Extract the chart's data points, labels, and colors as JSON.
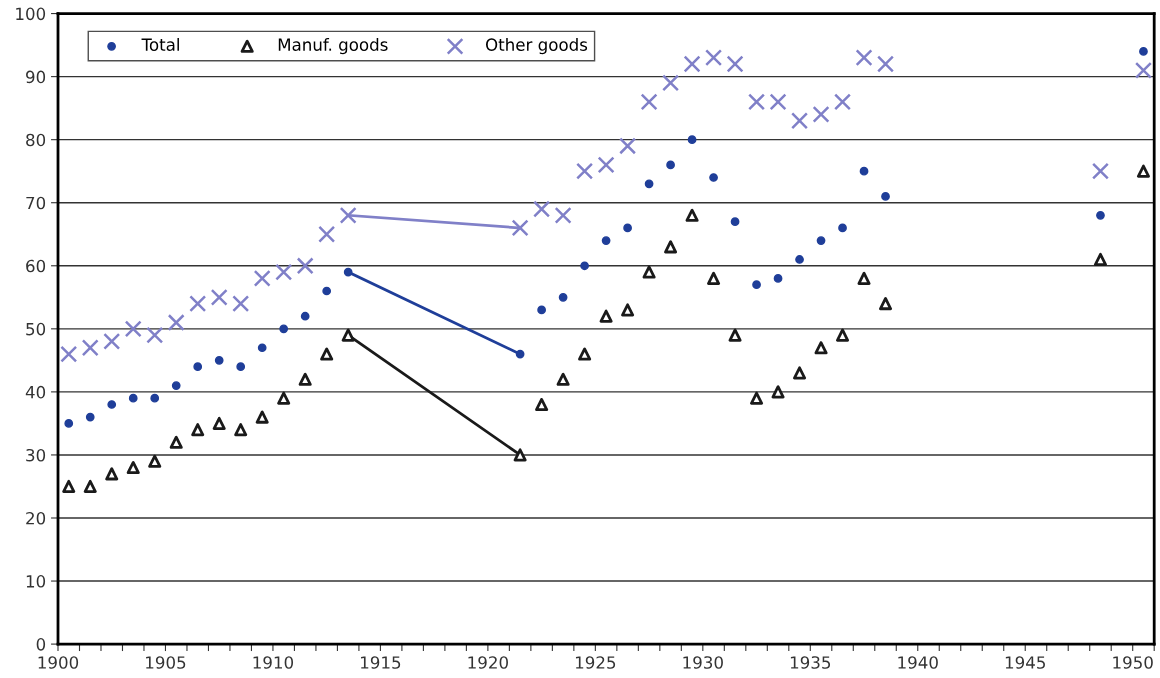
{
  "chart_data": {
    "type": "scatter",
    "x": [
      1900.5,
      1901.5,
      1902.5,
      1903.5,
      1904.5,
      1905.5,
      1906.5,
      1907.5,
      1908.5,
      1909.5,
      1910.5,
      1911.5,
      1912.5,
      1913.5,
      1921.5,
      1922.5,
      1923.5,
      1924.5,
      1925.5,
      1926.5,
      1927.5,
      1928.5,
      1929.5,
      1930.5,
      1931.5,
      1932.5,
      1933.5,
      1934.5,
      1935.5,
      1936.5,
      1937.5,
      1938.5,
      1948.5,
      1950.5
    ],
    "series": [
      {
        "name": "Total",
        "color": "#1f3e99",
        "marker": "circle",
        "values": [
          35,
          36,
          38,
          39,
          39,
          41,
          44,
          45,
          44,
          47,
          50,
          52,
          56,
          59,
          46,
          53,
          55,
          60,
          64,
          66,
          73,
          76,
          80,
          74,
          67,
          57,
          58,
          61,
          64,
          66,
          75,
          71,
          68,
          94
        ]
      },
      {
        "name": "Manuf. goods",
        "color": "#1a1a1a",
        "marker": "triangle",
        "values": [
          25,
          25,
          27,
          28,
          29,
          32,
          34,
          35,
          34,
          36,
          39,
          42,
          46,
          49,
          30,
          38,
          42,
          46,
          52,
          53,
          59,
          63,
          68,
          58,
          49,
          39,
          40,
          43,
          47,
          49,
          58,
          54,
          61,
          75
        ]
      },
      {
        "name": "Other goods",
        "color": "#8080c8",
        "marker": "cross",
        "values": [
          46,
          47,
          48,
          50,
          49,
          51,
          54,
          55,
          54,
          58,
          59,
          60,
          65,
          68,
          66,
          69,
          68,
          75,
          76,
          79,
          86,
          89,
          92,
          93,
          92,
          86,
          86,
          83,
          84,
          86,
          93,
          92,
          75,
          91
        ]
      },
      {
        "type": "line",
        "color": "#1f3e99",
        "marker": "none",
        "line_style": "solid",
        "values": [
          null,
          null,
          null,
          null,
          null,
          null,
          null,
          null,
          null,
          null,
          null,
          null,
          null,
          59,
          46,
          null,
          null,
          null,
          null,
          null,
          null,
          null,
          null,
          null,
          null,
          null,
          null,
          null,
          null,
          null,
          null,
          null,
          null,
          null
        ]
      },
      {
        "type": "line",
        "color": "#1a1a1a",
        "marker": "none",
        "line_style": "solid",
        "values": [
          null,
          null,
          null,
          null,
          null,
          null,
          null,
          null,
          null,
          null,
          null,
          null,
          null,
          49,
          30,
          null,
          null,
          null,
          null,
          null,
          null,
          null,
          null,
          null,
          null,
          null,
          null,
          null,
          null,
          null,
          null,
          null,
          null,
          null
        ]
      },
      {
        "type": "line",
        "color": "#8080c8",
        "marker": "none",
        "line_style": "solid",
        "values": [
          null,
          null,
          null,
          null,
          null,
          null,
          null,
          null,
          null,
          null,
          null,
          null,
          null,
          68,
          66,
          null,
          null,
          null,
          null,
          null,
          null,
          null,
          null,
          null,
          null,
          null,
          null,
          null,
          null,
          null,
          null,
          null,
          null,
          null
        ]
      }
    ],
    "xlim": [
      1900,
      1951
    ],
    "xticks": [
      1900,
      {
        "value": 1901,
        "label": null
      },
      {
        "value": 1902,
        "label": null
      },
      {
        "value": 1903,
        "label": null
      },
      {
        "value": 1904,
        "label": null
      },
      1905,
      {
        "value": 1906,
        "label": null
      },
      {
        "value": 1907,
        "label": null
      },
      {
        "value": 1908,
        "label": null
      },
      {
        "value": 1909,
        "label": null
      },
      1910,
      {
        "value": 1911,
        "label": null
      },
      {
        "value": 1912,
        "label": null
      },
      {
        "value": 1913,
        "label": null
      },
      {
        "value": 1914,
        "label": null
      },
      1915,
      {
        "value": 1916,
        "label": null
      },
      {
        "value": 1917,
        "label": null
      },
      {
        "value": 1918,
        "label": null
      },
      {
        "value": 1919,
        "label": null
      },
      1920,
      {
        "value": 1921,
        "label": null
      },
      {
        "value": 1922,
        "label": null
      },
      {
        "value": 1923,
        "label": null
      },
      {
        "value": 1924,
        "label": null
      },
      1925,
      {
        "value": 1926,
        "label": null
      },
      {
        "value": 1927,
        "label": null
      },
      {
        "value": 1928,
        "label": null
      },
      {
        "value": 1929,
        "label": null
      },
      1930,
      {
        "value": 1931,
        "label": null
      },
      {
        "value": 1932,
        "label": null
      },
      {
        "value": 1933,
        "label": null
      },
      {
        "value": 1934,
        "label": null
      },
      1935,
      {
        "value": 1936,
        "label": null
      },
      {
        "value": 1937,
        "label": null
      },
      {
        "value": 1938,
        "label": null
      },
      {
        "value": 1939,
        "label": null
      },
      1940,
      {
        "value": 1941,
        "label": null
      },
      {
        "value": 1942,
        "label": null
      },
      {
        "value": 1943,
        "label": null
      },
      {
        "value": 1944,
        "label": null
      },
      1945,
      {
        "value": 1946,
        "label": null
      },
      {
        "value": 1947,
        "label": null
      },
      {
        "value": 1948,
        "label": null
      },
      {
        "value": 1949,
        "label": null
      },
      1950,
      {
        "value": 1951,
        "label": null
      }
    ],
    "ylim": [
      0,
      100
    ],
    "yticks": [
      0,
      10,
      20,
      30,
      40,
      50,
      60,
      70,
      80,
      90,
      100
    ],
    "grid": "y",
    "legend": "top left"
  }
}
